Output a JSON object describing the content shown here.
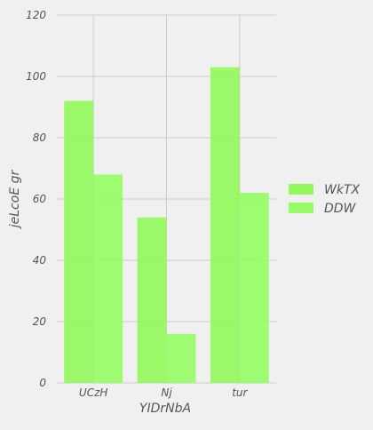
{
  "chart_data": {
    "type": "bar",
    "title": "",
    "xlabel": "YIDrNbA",
    "ylabel": "jeLcoE gr",
    "categories": [
      "UCzH",
      "Nj",
      "tur"
    ],
    "ylim": [
      0,
      120
    ],
    "yticks": [
      0,
      20,
      40,
      60,
      80,
      100,
      120
    ],
    "grid": true,
    "legend_position": "right",
    "series": [
      {
        "name": "WkTX",
        "values": [
          92,
          54,
          103
        ],
        "color": "#94f95c"
      },
      {
        "name": "DDW",
        "values": [
          68,
          16,
          62
        ],
        "color": "#96fd66"
      }
    ]
  }
}
